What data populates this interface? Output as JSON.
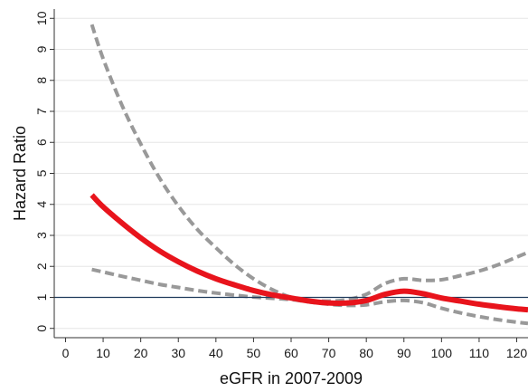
{
  "chart_data": {
    "type": "line",
    "title": "",
    "xlabel": "eGFR in 2007-2009",
    "ylabel": "Hazard Ratio",
    "xlim": [
      -3,
      123
    ],
    "ylim": [
      -0.3,
      10.3
    ],
    "xticks": [
      0,
      10,
      20,
      30,
      40,
      50,
      60,
      70,
      80,
      90,
      100,
      110,
      120
    ],
    "yticks": [
      0,
      1,
      2,
      3,
      4,
      5,
      6,
      7,
      8,
      9,
      10
    ],
    "grid": "horizontal",
    "reference_line": 1,
    "colors": {
      "estimate": "#e8141c",
      "ci": "#999999",
      "reference": "#1f3b5c",
      "grid": "#e6e6e6",
      "axis": "#333333"
    },
    "series": [
      {
        "role": "upper_ci",
        "style": "dashed",
        "x": [
          7,
          10,
          15,
          20,
          25,
          30,
          35,
          40,
          45,
          50,
          55,
          60,
          65,
          70,
          75,
          80,
          85,
          90,
          95,
          100,
          105,
          110,
          115,
          120,
          123
        ],
        "y": [
          9.8,
          8.7,
          7.2,
          5.95,
          4.85,
          3.95,
          3.2,
          2.6,
          2.05,
          1.6,
          1.25,
          1.0,
          0.9,
          0.88,
          0.93,
          1.1,
          1.45,
          1.6,
          1.55,
          1.57,
          1.7,
          1.85,
          2.05,
          2.3,
          2.45
        ]
      },
      {
        "role": "estimate",
        "style": "solid",
        "x": [
          7,
          10,
          15,
          20,
          25,
          30,
          35,
          40,
          45,
          50,
          55,
          60,
          65,
          70,
          75,
          80,
          85,
          90,
          95,
          100,
          105,
          110,
          115,
          120,
          123
        ],
        "y": [
          4.3,
          3.92,
          3.4,
          2.92,
          2.5,
          2.15,
          1.85,
          1.6,
          1.4,
          1.22,
          1.08,
          0.98,
          0.88,
          0.82,
          0.82,
          0.9,
          1.1,
          1.2,
          1.12,
          0.98,
          0.88,
          0.78,
          0.7,
          0.63,
          0.6
        ]
      },
      {
        "role": "lower_ci",
        "style": "dashed",
        "x": [
          7,
          10,
          15,
          20,
          25,
          30,
          35,
          40,
          45,
          50,
          55,
          60,
          65,
          70,
          75,
          80,
          85,
          90,
          95,
          100,
          105,
          110,
          115,
          120,
          123
        ],
        "y": [
          1.9,
          1.82,
          1.68,
          1.55,
          1.42,
          1.32,
          1.22,
          1.14,
          1.07,
          1.01,
          0.97,
          0.93,
          0.85,
          0.78,
          0.74,
          0.76,
          0.86,
          0.9,
          0.83,
          0.65,
          0.5,
          0.38,
          0.28,
          0.2,
          0.16
        ]
      }
    ]
  }
}
